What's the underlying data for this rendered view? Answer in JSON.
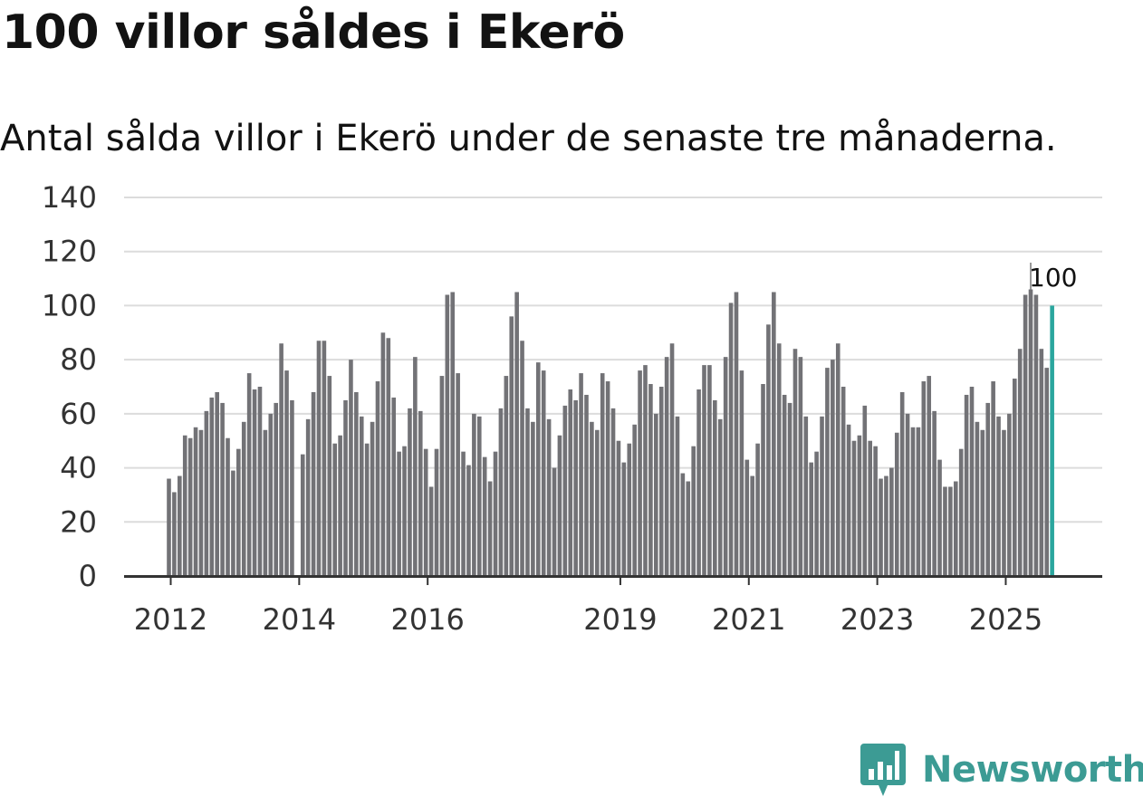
{
  "title": "100 villor såldes i Ekerö",
  "subtitle": "Antal sålda villor i Ekerö under de senaste tre månaderna.",
  "logo": {
    "text": "Newsworthy",
    "icon": "bar-chart-badge-icon",
    "color": "#3c9b94"
  },
  "chart_data": {
    "type": "bar",
    "title": "100 villor såldes i Ekerö",
    "subtitle": "Antal sålda villor i Ekerö under de senaste tre månaderna.",
    "xlabel": "",
    "ylabel": "",
    "ylim": [
      0,
      140
    ],
    "yticks": [
      "0",
      "20",
      "40",
      "60",
      "80",
      "100",
      "120",
      "140"
    ],
    "grid": true,
    "bar_color": "#727276",
    "highlight_color": "#2ba69e",
    "x_start": "2012-01",
    "xticks": [
      {
        "label": "2012",
        "month": "2012-01"
      },
      {
        "label": "2014",
        "month": "2014-01"
      },
      {
        "label": "2016",
        "month": "2016-01"
      },
      {
        "label": "2019",
        "month": "2019-01"
      },
      {
        "label": "2021",
        "month": "2021-01"
      },
      {
        "label": "2023",
        "month": "2023-01"
      },
      {
        "label": "2025",
        "month": "2025-01"
      }
    ],
    "values": [
      36,
      31,
      37,
      52,
      51,
      55,
      54,
      61,
      66,
      68,
      64,
      51,
      39,
      47,
      57,
      75,
      69,
      70,
      54,
      60,
      64,
      86,
      76,
      65,
      0,
      45,
      58,
      68,
      87,
      87,
      74,
      49,
      52,
      65,
      80,
      68,
      59,
      49,
      57,
      72,
      90,
      88,
      66,
      46,
      48,
      62,
      81,
      61,
      47,
      33,
      47,
      74,
      104,
      105,
      75,
      46,
      41,
      60,
      59,
      44,
      35,
      46,
      62,
      74,
      96,
      105,
      87,
      62,
      57,
      79,
      76,
      58,
      40,
      52,
      63,
      69,
      65,
      75,
      67,
      57,
      54,
      75,
      72,
      62,
      50,
      42,
      49,
      56,
      76,
      78,
      71,
      60,
      70,
      81,
      86,
      59,
      38,
      35,
      48,
      69,
      78,
      78,
      65,
      58,
      81,
      101,
      105,
      76,
      43,
      37,
      49,
      71,
      93,
      105,
      86,
      67,
      64,
      84,
      81,
      59,
      42,
      46,
      59,
      77,
      80,
      86,
      70,
      56,
      50,
      52,
      63,
      50,
      48,
      36,
      37,
      40,
      53,
      68,
      60,
      55,
      55,
      72,
      74,
      61,
      43,
      33,
      33,
      35,
      47,
      67,
      70,
      57,
      54,
      64,
      72,
      59,
      54,
      60,
      73,
      84,
      104,
      106,
      104,
      84,
      77,
      100
    ],
    "highlight_index": 165,
    "highlight_label": "100"
  }
}
